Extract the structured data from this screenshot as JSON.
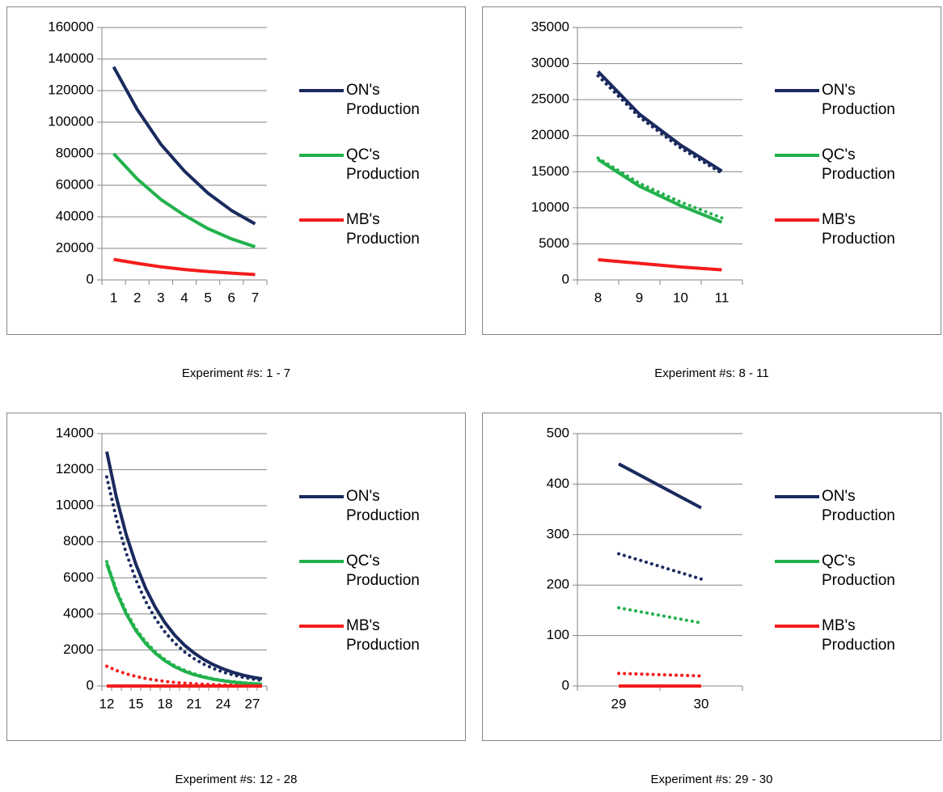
{
  "chart_data": [
    {
      "type": "line",
      "caption": "Experiment #s: 1 - 7",
      "categories": [
        "1",
        "2",
        "3",
        "4",
        "5",
        "6",
        "7"
      ],
      "ylim": [
        0,
        160000
      ],
      "yticks": [
        0,
        20000,
        40000,
        60000,
        80000,
        100000,
        120000,
        140000,
        160000
      ],
      "grid": true,
      "series": [
        {
          "name": "ON's Production",
          "color": "#1a2a5e",
          "values": [
            135000,
            108000,
            86000,
            69000,
            55000,
            44000,
            35500
          ]
        },
        {
          "name": "QC's Production",
          "color": "#22b14c",
          "values": [
            80000,
            64000,
            51000,
            41000,
            32500,
            26000,
            21000
          ]
        },
        {
          "name": "MB's Production",
          "color": "#f41c1c",
          "values": [
            13000,
            10500,
            8300,
            6600,
            5300,
            4300,
            3400
          ]
        }
      ]
    },
    {
      "type": "line",
      "caption": "Experiment #s: 8 - 11",
      "categories": [
        "8",
        "9",
        "10",
        "11"
      ],
      "ylim": [
        0,
        35000
      ],
      "yticks": [
        0,
        5000,
        10000,
        15000,
        20000,
        25000,
        30000,
        35000
      ],
      "grid": true,
      "series": [
        {
          "color": "#1a2a5e",
          "dash": "dotted",
          "values": [
            28300,
            22600,
            18300,
            14800
          ]
        },
        {
          "color": "#22b14c",
          "dash": "dotted",
          "values": [
            16900,
            13400,
            10800,
            8600
          ]
        },
        {
          "name": "ON's Production",
          "color": "#1a2a5e",
          "values": [
            28900,
            23000,
            18700,
            15100
          ]
        },
        {
          "name": "QC's Production",
          "color": "#22b14c",
          "values": [
            16700,
            13000,
            10300,
            8000
          ]
        },
        {
          "name": "MB's Production",
          "color": "#f41c1c",
          "values": [
            2800,
            2300,
            1800,
            1400
          ]
        }
      ]
    },
    {
      "type": "line",
      "caption": "Experiment #s: 12 - 28",
      "categories": [
        "12",
        null,
        null,
        "15",
        null,
        null,
        "18",
        null,
        null,
        "21",
        null,
        null,
        "24",
        null,
        null,
        "27",
        null
      ],
      "ylim": [
        0,
        14000
      ],
      "yticks": [
        0,
        2000,
        4000,
        6000,
        8000,
        10000,
        12000,
        14000
      ],
      "grid": true,
      "series": [
        {
          "color": "#1a2a5e",
          "dash": "dotted",
          "values": [
            11600,
            9250,
            7380,
            5890,
            4700,
            3750,
            2990,
            2390,
            1900,
            1520,
            1210,
            970,
            770,
            620,
            490,
            390,
            310
          ]
        },
        {
          "color": "#22b14c",
          "dash": "dotted",
          "values": [
            6900,
            5330,
            4120,
            3180,
            2460,
            1900,
            1470,
            1130,
            880,
            680,
            520,
            400,
            310,
            240,
            190,
            145,
            110
          ]
        },
        {
          "color": "#f41c1c",
          "dash": "dotted",
          "values": [
            1100,
            860,
            680,
            530,
            420,
            330,
            260,
            200,
            160,
            125,
            100,
            80,
            60,
            50,
            40,
            30,
            25
          ]
        },
        {
          "name": "ON's Production",
          "color": "#1a2a5e",
          "values": [
            13000,
            10450,
            8400,
            6760,
            5430,
            4370,
            3510,
            2820,
            2270,
            1830,
            1470,
            1180,
            950,
            760,
            610,
            490,
            400
          ]
        },
        {
          "name": "QC's Production",
          "color": "#22b14c",
          "values": [
            6800,
            5220,
            4010,
            3080,
            2370,
            1820,
            1400,
            1070,
            820,
            630,
            490,
            375,
            290,
            220,
            170,
            130,
            100
          ]
        },
        {
          "name": "MB's Production",
          "color": "#f41c1c",
          "values": [
            0,
            0,
            0,
            0,
            0,
            0,
            0,
            0,
            0,
            0,
            0,
            0,
            0,
            0,
            0,
            0,
            0
          ]
        }
      ]
    },
    {
      "type": "line",
      "caption": "Experiment #s: 29 - 30",
      "categories": [
        "29",
        "30"
      ],
      "ylim": [
        0,
        500
      ],
      "yticks": [
        0,
        100,
        200,
        300,
        400,
        500
      ],
      "grid": true,
      "series": [
        {
          "color": "#1a2a5e",
          "dash": "dotted",
          "values": [
            262,
            212
          ]
        },
        {
          "color": "#22b14c",
          "dash": "dotted",
          "values": [
            155,
            125
          ]
        },
        {
          "color": "#f41c1c",
          "dash": "dotted",
          "values": [
            25,
            20
          ]
        },
        {
          "name": "ON's Production",
          "color": "#1a2a5e",
          "values": [
            440,
            353
          ]
        },
        {
          "name": "QC's Production",
          "color": "#22b14c",
          "values": [
            0,
            0
          ]
        },
        {
          "name": "MB's Production",
          "color": "#f41c1c",
          "values": [
            0,
            0
          ]
        }
      ]
    }
  ]
}
